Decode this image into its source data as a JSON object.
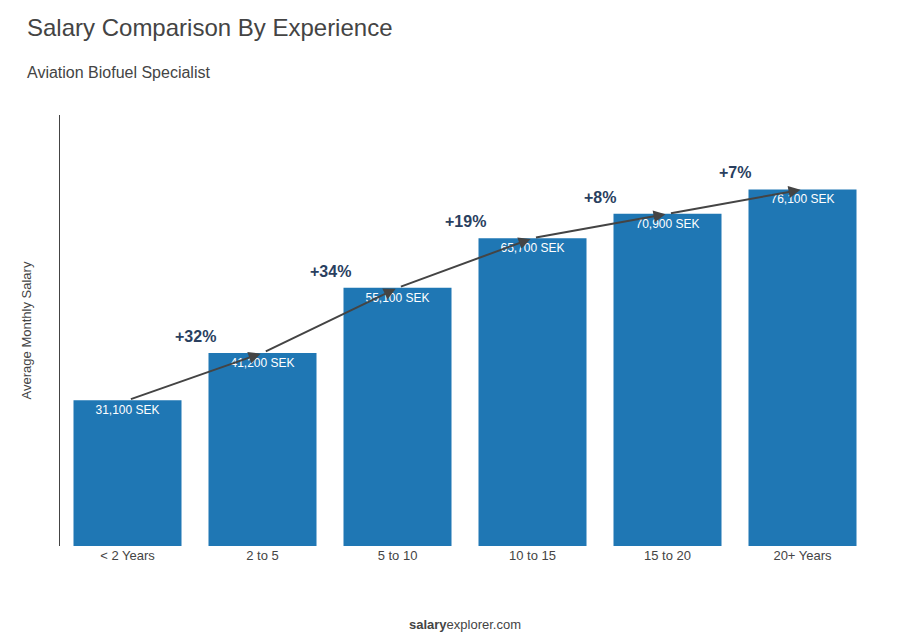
{
  "chart_data": {
    "type": "bar",
    "title": "Salary Comparison By Experience",
    "subtitle": "Aviation Biofuel Specialist",
    "categories": [
      "< 2 Years",
      "2 to 5",
      "5 to 10",
      "10 to 15",
      "15 to 20",
      "20+ Years"
    ],
    "values": [
      31100,
      41200,
      55100,
      65700,
      70900,
      76100
    ],
    "value_labels": [
      "31,100 SEK",
      "41,200 SEK",
      "55,100 SEK",
      "65,700 SEK",
      "70,900 SEK",
      "76,100 SEK"
    ],
    "data_labels": true,
    "ylabel": "Average Monthly Salary",
    "ylim": [
      0,
      92000
    ],
    "yticks": [],
    "tick_labels": "x",
    "grid": false,
    "change_labels": [
      "+32%",
      "+34%",
      "+19%",
      "+8%",
      "+7%"
    ],
    "footer": [
      "salary",
      "explorer.com"
    ]
  }
}
